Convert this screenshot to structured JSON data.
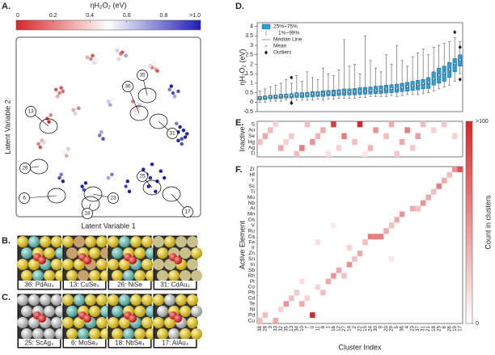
{
  "panel_labels": [
    "A.",
    "B.",
    "C.",
    "D.",
    "E.",
    "F."
  ],
  "structures_B": [
    "36: PdAu₃",
    "13: CuSe₂",
    "26: NiSe",
    "31: CdAu₃"
  ],
  "structures_C": [
    "25: ScAg₄",
    "6: MoSe₂",
    "18: NbSe₄",
    "17: AlAu₄"
  ],
  "chart_data": [
    {
      "type": "scatter",
      "xlabel": "Latent Variable 1",
      "ylabel": "Latent Variable 2",
      "xlim": [
        0,
        100
      ],
      "ylim": [
        0,
        100
      ],
      "colorbar": {
        "title": "ηH₂O₂ (eV)",
        "lim": [
          0,
          1
        ],
        "ticks": [
          0,
          0.2,
          0.4,
          0.6,
          0.8,
          {
            "value": 1,
            "label": ">1.0"
          }
        ]
      },
      "annotations": [
        "35",
        "36",
        "13",
        "31",
        "26",
        "25",
        "6",
        "23",
        "18",
        "17"
      ],
      "x": [
        20,
        22,
        24,
        21,
        23,
        40,
        42,
        41,
        43,
        38,
        55,
        57,
        56,
        58,
        60,
        75,
        77,
        76,
        78,
        74,
        15,
        17,
        16,
        30,
        32,
        31,
        33,
        50,
        52,
        51,
        65,
        67,
        66,
        68,
        64,
        85,
        87,
        86,
        88,
        90,
        10,
        12,
        11,
        13,
        25,
        27,
        26,
        45,
        47,
        46,
        88,
        90,
        92,
        91,
        93,
        89,
        94,
        95,
        92,
        90,
        22,
        24,
        23,
        35,
        37,
        36,
        70,
        72,
        74,
        78,
        75,
        80,
        73,
        77,
        82,
        60,
        62,
        61,
        50,
        52
      ],
      "y": [
        72,
        70,
        71,
        68,
        73,
        90,
        88,
        92,
        89,
        91,
        95,
        93,
        90,
        94,
        92,
        85,
        84,
        87,
        83,
        86,
        55,
        57,
        53,
        60,
        62,
        58,
        61,
        65,
        66,
        63,
        60,
        62,
        58,
        63,
        65,
        72,
        70,
        74,
        68,
        71,
        40,
        42,
        38,
        41,
        35,
        37,
        33,
        45,
        43,
        47,
        45,
        47,
        43,
        50,
        48,
        52,
        44,
        46,
        40,
        42,
        20,
        18,
        22,
        15,
        17,
        13,
        25,
        22,
        20,
        18,
        28,
        24,
        15,
        12,
        20,
        15,
        12,
        18,
        20,
        22
      ],
      "values": [
        0.1,
        0.2,
        0.15,
        0.3,
        0.1,
        0.2,
        0.4,
        0.1,
        0.5,
        0.3,
        0.6,
        0.2,
        0.4,
        0.1,
        0.7,
        0.2,
        0.3,
        0.5,
        0.1,
        0.4,
        0.1,
        0.2,
        0.0,
        0.3,
        0.5,
        0.4,
        0.2,
        0.6,
        0.5,
        0.7,
        0.4,
        0.3,
        0.5,
        0.6,
        0.2,
        0.8,
        0.9,
        1.0,
        0.7,
        0.9,
        0.2,
        0.3,
        0.1,
        0.4,
        0.5,
        0.6,
        0.3,
        0.8,
        0.9,
        0.7,
        1.0,
        1.0,
        0.9,
        1.0,
        1.0,
        0.8,
        1.0,
        1.0,
        0.9,
        1.0,
        0.9,
        1.0,
        0.8,
        1.0,
        1.0,
        0.9,
        1.0,
        1.0,
        1.0,
        1.0,
        1.0,
        1.0,
        1.0,
        1.0,
        1.0,
        0.9,
        1.0,
        1.0,
        0.7,
        0.8
      ]
    },
    {
      "type": "box",
      "ylabel": "ηH₂O₂ (eV)",
      "color": "#2a9fd8",
      "ylim": [
        -0.5,
        4.2
      ],
      "yticks": [
        -0.5,
        0,
        0.5,
        1,
        1.5,
        2,
        2.5,
        3,
        3.5,
        4
      ],
      "legend": [
        "25%~75%",
        "1%~99%",
        "Median Line",
        "Mean",
        "Outliers"
      ],
      "categories": [
        "38",
        "28",
        "3",
        "33",
        "32",
        "35",
        "13",
        "34",
        "10",
        "7",
        "0",
        "11",
        "8",
        "1",
        "16",
        "12",
        "27",
        "14",
        "2",
        "22",
        "15",
        "24",
        "30",
        "9",
        "20",
        "29",
        "5",
        "36",
        "4",
        "23",
        "37",
        "31",
        "21",
        "18",
        "25",
        "6",
        "26",
        "19",
        "17"
      ],
      "whisker_low": [
        0,
        0,
        0.05,
        0.05,
        0.05,
        0.1,
        0.05,
        0.1,
        0.1,
        0.1,
        0.1,
        0.15,
        0.1,
        0.15,
        0.15,
        0.2,
        0.2,
        0.2,
        0.2,
        0.25,
        0.25,
        0.3,
        0.3,
        0.3,
        0.3,
        0.35,
        0.3,
        0.35,
        0.4,
        0.4,
        0.4,
        0.45,
        0.5,
        0.6,
        0.7,
        0.8,
        0.9,
        1.1,
        1.5
      ],
      "q1": [
        0.12,
        0.14,
        0.17,
        0.18,
        0.2,
        0.21,
        0.22,
        0.25,
        0.24,
        0.27,
        0.28,
        0.3,
        0.3,
        0.33,
        0.32,
        0.35,
        0.36,
        0.38,
        0.38,
        0.4,
        0.42,
        0.43,
        0.45,
        0.46,
        0.48,
        0.5,
        0.52,
        0.55,
        0.58,
        0.62,
        0.65,
        0.7,
        0.72,
        0.9,
        1.0,
        1.1,
        1.3,
        1.6,
        1.9
      ],
      "median": [
        0.2,
        0.22,
        0.25,
        0.27,
        0.3,
        0.3,
        0.32,
        0.35,
        0.35,
        0.38,
        0.4,
        0.4,
        0.42,
        0.45,
        0.45,
        0.48,
        0.5,
        0.5,
        0.52,
        0.55,
        0.55,
        0.58,
        0.6,
        0.62,
        0.65,
        0.68,
        0.7,
        0.75,
        0.8,
        0.85,
        0.9,
        0.95,
        1.0,
        1.2,
        1.4,
        1.5,
        1.7,
        2.0,
        2.2
      ],
      "q3": [
        0.3,
        0.33,
        0.36,
        0.38,
        0.42,
        0.43,
        0.45,
        0.5,
        0.5,
        0.52,
        0.56,
        0.56,
        0.6,
        0.62,
        0.64,
        0.66,
        0.7,
        0.7,
        0.72,
        0.76,
        0.78,
        0.8,
        0.84,
        0.86,
        0.9,
        0.92,
        0.95,
        1.0,
        1.05,
        1.1,
        1.15,
        1.2,
        1.3,
        1.6,
        1.8,
        1.9,
        2.1,
        2.3,
        2.5
      ],
      "whisker_high": [
        0.6,
        0.7,
        0.8,
        0.9,
        1.0,
        1.2,
        1.0,
        1.4,
        1.1,
        1.6,
        1.3,
        1.2,
        1.8,
        1.5,
        1.4,
        1.7,
        3.3,
        1.9,
        2.0,
        1.5,
        3.5,
        2.2,
        1.8,
        1.6,
        2.5,
        2.0,
        3.0,
        2.2,
        1.9,
        2.4,
        2.6,
        2.8,
        2.5,
        2.9,
        3.0,
        3.1,
        3.2,
        3.4,
        3.2
      ],
      "mean": [
        0.23,
        0.25,
        0.28,
        0.3,
        0.33,
        0.33,
        0.35,
        0.38,
        0.38,
        0.41,
        0.43,
        0.43,
        0.45,
        0.48,
        0.48,
        0.51,
        0.53,
        0.53,
        0.55,
        0.58,
        0.58,
        0.61,
        0.63,
        0.65,
        0.68,
        0.71,
        0.73,
        0.78,
        0.83,
        0.88,
        0.93,
        0.98,
        1.03,
        1.23,
        1.43,
        1.53,
        1.73,
        2.03,
        2.23
      ],
      "outliers": [
        {
          "category": "13",
          "value": 1.3
        },
        {
          "category": "13",
          "value": -0.05
        },
        {
          "category": "19",
          "value": 3.7
        },
        {
          "category": "17",
          "value": 2.9
        },
        {
          "category": "17",
          "value": 1.2
        }
      ]
    },
    {
      "type": "heatmap",
      "ylabel": "Inactive",
      "color": "#d62728",
      "columns": 39,
      "rows": [
        "S",
        "Au",
        "Se",
        "Hg",
        "Ag",
        "Tl"
      ],
      "cells": [
        [
          0,
          3,
          20
        ],
        [
          0,
          9,
          30
        ],
        [
          0,
          14,
          90
        ],
        [
          0,
          19,
          100
        ],
        [
          0,
          25,
          40
        ],
        [
          0,
          31,
          30
        ],
        [
          0,
          35,
          25
        ],
        [
          1,
          2,
          30
        ],
        [
          1,
          12,
          40
        ],
        [
          1,
          22,
          50
        ],
        [
          1,
          28,
          60
        ],
        [
          1,
          33,
          20
        ],
        [
          2,
          1,
          40
        ],
        [
          2,
          6,
          25
        ],
        [
          2,
          11,
          35
        ],
        [
          2,
          16,
          60
        ],
        [
          2,
          24,
          30
        ],
        [
          2,
          30,
          45
        ],
        [
          2,
          37,
          20
        ],
        [
          3,
          0,
          30
        ],
        [
          3,
          5,
          20
        ],
        [
          3,
          10,
          50
        ],
        [
          3,
          18,
          30
        ],
        [
          3,
          27,
          40
        ],
        [
          4,
          4,
          40
        ],
        [
          4,
          8,
          60
        ],
        [
          4,
          15,
          20
        ],
        [
          4,
          21,
          35
        ],
        [
          4,
          29,
          25
        ],
        [
          5,
          7,
          30
        ],
        [
          5,
          13,
          15
        ],
        [
          5,
          20,
          10
        ],
        [
          5,
          26,
          25
        ]
      ]
    },
    {
      "type": "heatmap",
      "ylabel": "Active Element",
      "xlabel": "Cluster Index",
      "color": "#d62728",
      "colorbar": {
        "title": "Count in clusters",
        "lim": [
          0,
          100
        ],
        "ticks": [
          0,
          {
            "value": 100,
            "label": ">100"
          }
        ]
      },
      "categories": [
        "38",
        "28",
        "3",
        "33",
        "32",
        "35",
        "13",
        "34",
        "10",
        "7",
        "0",
        "11",
        "8",
        "1",
        "16",
        "12",
        "27",
        "14",
        "2",
        "22",
        "15",
        "24",
        "30",
        "9",
        "20",
        "29",
        "5",
        "36",
        "4",
        "23",
        "37",
        "31",
        "21",
        "18",
        "25",
        "6",
        "26",
        "19",
        "17"
      ],
      "rows": [
        "Zr",
        "Hf",
        "Y",
        "Sc",
        "Ti",
        "Mo",
        "Nb",
        "Al",
        "Mn",
        "Os",
        "V",
        "Ru",
        "Ca",
        "Fe",
        "Ir",
        "Zn",
        "Sn",
        "In",
        "Sb",
        "Rh",
        "Pt",
        "Co",
        "Pb",
        "Cd",
        "Te",
        "Ni",
        "Pd",
        "Cu"
      ],
      "cells": [
        [
          27,
          0,
          30
        ],
        [
          27,
          3,
          40
        ],
        [
          26,
          1,
          30
        ],
        [
          26,
          10,
          100
        ],
        [
          25,
          4,
          20
        ],
        [
          24,
          5,
          50
        ],
        [
          24,
          8,
          40
        ],
        [
          23,
          6,
          30
        ],
        [
          23,
          9,
          20
        ],
        [
          22,
          7,
          25
        ],
        [
          22,
          12,
          30
        ],
        [
          21,
          11,
          20
        ],
        [
          20,
          13,
          40
        ],
        [
          19,
          14,
          50
        ],
        [
          19,
          16,
          30
        ],
        [
          18,
          15,
          40
        ],
        [
          17,
          17,
          50
        ],
        [
          16,
          18,
          30
        ],
        [
          15,
          19,
          40
        ],
        [
          14,
          17,
          20
        ],
        [
          13,
          20,
          30
        ],
        [
          12,
          21,
          60
        ],
        [
          12,
          22,
          60
        ],
        [
          12,
          23,
          60
        ],
        [
          11,
          24,
          40
        ],
        [
          10,
          25,
          30
        ],
        [
          9,
          26,
          40
        ],
        [
          8,
          27,
          50
        ],
        [
          7,
          29,
          40
        ],
        [
          7,
          30,
          30
        ],
        [
          6,
          31,
          50
        ],
        [
          5,
          32,
          40
        ],
        [
          4,
          33,
          30
        ],
        [
          3,
          34,
          60
        ],
        [
          2,
          35,
          40
        ],
        [
          1,
          36,
          30
        ],
        [
          0,
          37,
          50
        ],
        [
          0,
          38,
          80
        ],
        [
          13,
          11,
          15
        ],
        [
          16,
          25,
          10
        ],
        [
          20,
          8,
          15
        ],
        [
          10,
          14,
          10
        ]
      ]
    }
  ]
}
